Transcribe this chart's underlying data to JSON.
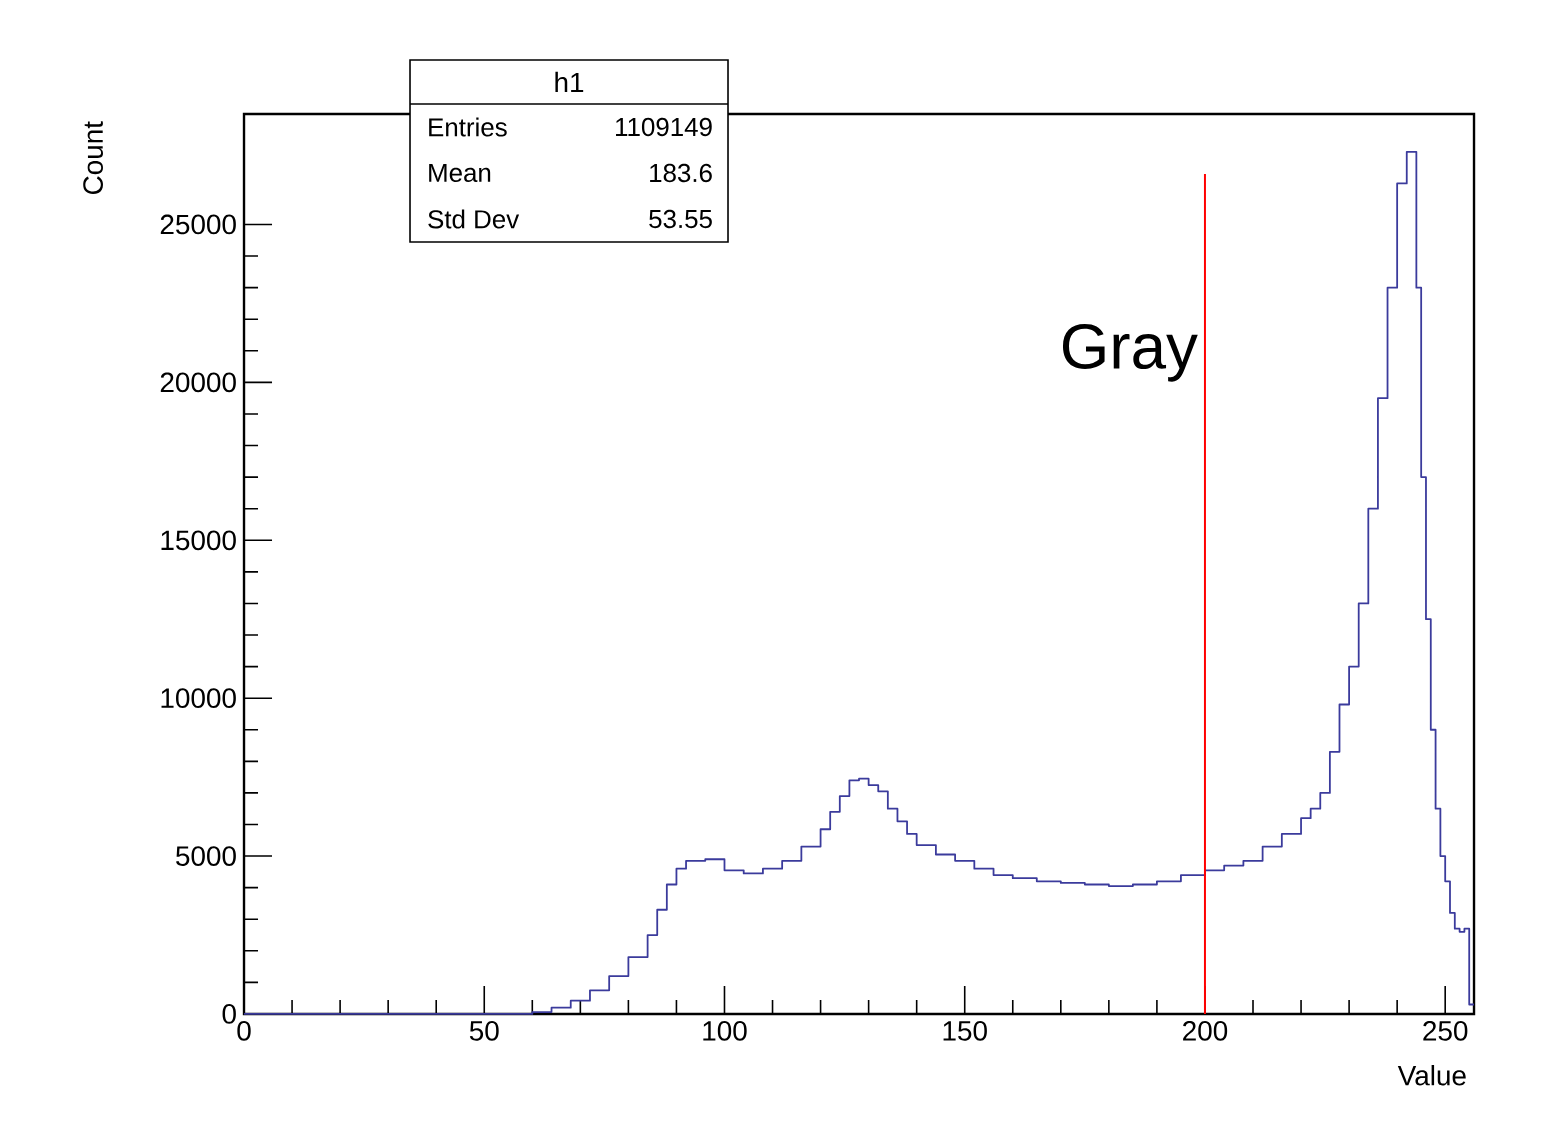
{
  "chart_data": {
    "type": "histogram",
    "xlabel": "Value",
    "ylabel": "Count",
    "color": "#3b3b9c",
    "bins": [
      0,
      60,
      64,
      68,
      72,
      76,
      80,
      84,
      86,
      88,
      90,
      92,
      96,
      100,
      104,
      108,
      112,
      116,
      120,
      122,
      124,
      126,
      128,
      130,
      132,
      134,
      136,
      138,
      140,
      144,
      148,
      152,
      156,
      160,
      165,
      170,
      175,
      180,
      185,
      190,
      195,
      200,
      204,
      208,
      212,
      216,
      220,
      222,
      224,
      226,
      228,
      230,
      232,
      234,
      236,
      238,
      240,
      242,
      244,
      245,
      246,
      247,
      248,
      249,
      250,
      251,
      252,
      253,
      254,
      255,
      256
    ],
    "values": [
      0,
      60,
      200,
      420,
      750,
      1200,
      1800,
      2500,
      3300,
      4100,
      4600,
      4850,
      4900,
      4550,
      4450,
      4600,
      4850,
      5300,
      5850,
      6400,
      6900,
      7400,
      7450,
      7250,
      7050,
      6500,
      6100,
      5700,
      5350,
      5050,
      4850,
      4600,
      4400,
      4300,
      4200,
      4150,
      4100,
      4050,
      4100,
      4200,
      4400,
      4550,
      4700,
      4850,
      5300,
      5700,
      6200,
      6500,
      7000,
      8300,
      9800,
      11000,
      13000,
      16000,
      19500,
      23000,
      26300,
      27300,
      23000,
      17000,
      12500,
      9000,
      6500,
      5000,
      4200,
      3200,
      2700,
      2600,
      2700,
      300
    ],
    "xlim": [
      0,
      256
    ],
    "ylim": [
      0,
      28500
    ],
    "xticks": [
      0,
      50,
      100,
      150,
      200,
      250
    ],
    "yticks": [
      0,
      5000,
      10000,
      15000,
      20000,
      25000
    ],
    "ref_lines": [
      {
        "axis": "x",
        "value": 200,
        "label": "Gray",
        "color": "#ff0000"
      }
    ],
    "annotations": [
      "h1",
      "Entries",
      "1109149",
      "Mean",
      "183.6",
      "Std Dev",
      "53.55"
    ]
  }
}
